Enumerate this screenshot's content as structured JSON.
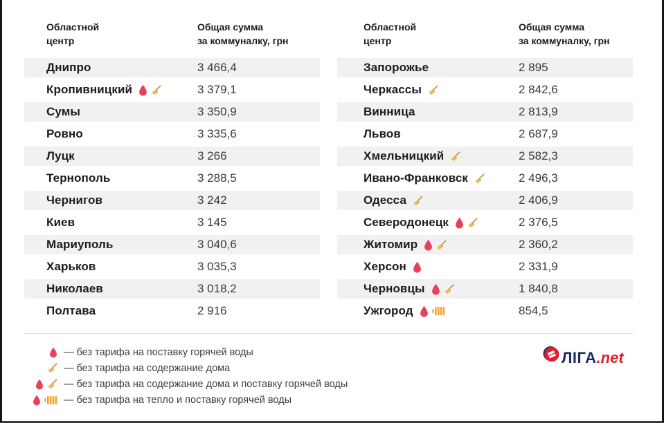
{
  "card": {
    "tables": [
      {
        "header": {
          "city": "Областной\nцентр",
          "sum": "Общая сумма\nза коммуналку, грн"
        },
        "rows": [
          {
            "city": "Днипро",
            "value": "3 466,4",
            "icons": []
          },
          {
            "city": "Кропивницкий",
            "value": "3 379,1",
            "icons": [
              "drop",
              "broom"
            ]
          },
          {
            "city": "Сумы",
            "value": "3 350,9",
            "icons": []
          },
          {
            "city": "Ровно",
            "value": "3 335,6",
            "icons": []
          },
          {
            "city": "Луцк",
            "value": "3 266",
            "icons": []
          },
          {
            "city": "Тернополь",
            "value": "3 288,5",
            "icons": []
          },
          {
            "city": "Чернигов",
            "value": "3 242",
            "icons": []
          },
          {
            "city": "Киев",
            "value": "3 145",
            "icons": []
          },
          {
            "city": "Мариуполь",
            "value": "3 040,6",
            "icons": []
          },
          {
            "city": "Харьков",
            "value": "3 035,3",
            "icons": []
          },
          {
            "city": "Николаев",
            "value": "3 018,2",
            "icons": []
          },
          {
            "city": "Полтава",
            "value": "2 916",
            "icons": []
          }
        ]
      },
      {
        "header": {
          "city": "Областной\nцентр",
          "sum": "Общая сумма\nза коммуналку, грн"
        },
        "rows": [
          {
            "city": "Запорожье",
            "value": "2 895",
            "icons": []
          },
          {
            "city": "Черкассы",
            "value": "2 842,6",
            "icons": [
              "broom"
            ]
          },
          {
            "city": "Винница",
            "value": "2 813,9",
            "icons": []
          },
          {
            "city": "Львов",
            "value": "2 687,9",
            "icons": []
          },
          {
            "city": "Хмельницкий",
            "value": "2 582,3",
            "icons": [
              "broom"
            ]
          },
          {
            "city": "Ивано-Франковск",
            "value": "2 496,3",
            "icons": [
              "broom"
            ]
          },
          {
            "city": "Одесса",
            "value": "2 406,9",
            "icons": [
              "broom"
            ]
          },
          {
            "city": "Северодонецк",
            "value": "2 376,5",
            "icons": [
              "drop",
              "broom"
            ]
          },
          {
            "city": "Житомир",
            "value": "2 360,2",
            "icons": [
              "drop",
              "broom"
            ]
          },
          {
            "city": "Херсон",
            "value": "2 331,9",
            "icons": [
              "drop"
            ]
          },
          {
            "city": "Черновцы",
            "value": "1 840,8",
            "icons": [
              "drop",
              "broom"
            ]
          },
          {
            "city": "Ужгород",
            "value": "854,5",
            "icons": [
              "drop",
              "radiator"
            ]
          }
        ]
      }
    ],
    "legend": [
      {
        "icons": [
          "drop"
        ],
        "text": "— без тарифа на поставку горячей воды"
      },
      {
        "icons": [
          "broom"
        ],
        "text": "— без тарифа на содержание дома"
      },
      {
        "icons": [
          "drop",
          "broom"
        ],
        "text": "— без тарифа на содержание дома и поставку горячей воды"
      },
      {
        "icons": [
          "drop",
          "radiator"
        ],
        "text": "— без тарифа на тепло и поставку горячей воды"
      }
    ],
    "logo": {
      "brand": "ЛІГА",
      "suffix": ".net"
    },
    "colors": {
      "drop": "#e8415a",
      "broom_handle": "#c79035",
      "broom_brush": "#ecc866",
      "broom_band": "#d9a843",
      "radiator": "#f0a32f",
      "stripe": "#f1f1f2",
      "logo_navy": "#1d2c5f",
      "logo_red": "#e31e2d"
    }
  },
  "chart_data": {
    "type": "table",
    "columns": [
      "Областной центр",
      "Общая сумма за коммуналку, грн"
    ],
    "rows": [
      [
        "Днипро",
        3466.4
      ],
      [
        "Кропивницкий",
        3379.1
      ],
      [
        "Сумы",
        3350.9
      ],
      [
        "Ровно",
        3335.6
      ],
      [
        "Луцк",
        3266
      ],
      [
        "Тернополь",
        3288.5
      ],
      [
        "Чернигов",
        3242
      ],
      [
        "Киев",
        3145
      ],
      [
        "Мариуполь",
        3040.6
      ],
      [
        "Харьков",
        3035.3
      ],
      [
        "Николаев",
        3018.2
      ],
      [
        "Полтава",
        2916
      ],
      [
        "Запорожье",
        2895
      ],
      [
        "Черкассы",
        2842.6
      ],
      [
        "Винница",
        2813.9
      ],
      [
        "Львов",
        2687.9
      ],
      [
        "Хмельницкий",
        2582.3
      ],
      [
        "Ивано-Франковск",
        2496.3
      ],
      [
        "Одесса",
        2406.9
      ],
      [
        "Северодонецк",
        2376.5
      ],
      [
        "Житомир",
        2360.2
      ],
      [
        "Херсон",
        2331.9
      ],
      [
        "Черновцы",
        1840.8
      ],
      [
        "Ужгород",
        854.5
      ]
    ],
    "city_flags": {
      "Кропивницкий": [
        "drop",
        "broom"
      ],
      "Черкассы": [
        "broom"
      ],
      "Хмельницкий": [
        "broom"
      ],
      "Ивано-Франковск": [
        "broom"
      ],
      "Одесса": [
        "broom"
      ],
      "Северодонецк": [
        "drop",
        "broom"
      ],
      "Житомир": [
        "drop",
        "broom"
      ],
      "Херсон": [
        "drop"
      ],
      "Черновцы": [
        "drop",
        "broom"
      ],
      "Ужгород": [
        "drop",
        "radiator"
      ]
    },
    "legend": {
      "drop": "без тарифа на поставку горячей воды",
      "broom": "без тарифа на содержание дома",
      "drop+broom": "без тарифа на содержание дома и поставку горячей воды",
      "drop+radiator": "без тарифа на тепло и поставку горячей воды"
    }
  }
}
